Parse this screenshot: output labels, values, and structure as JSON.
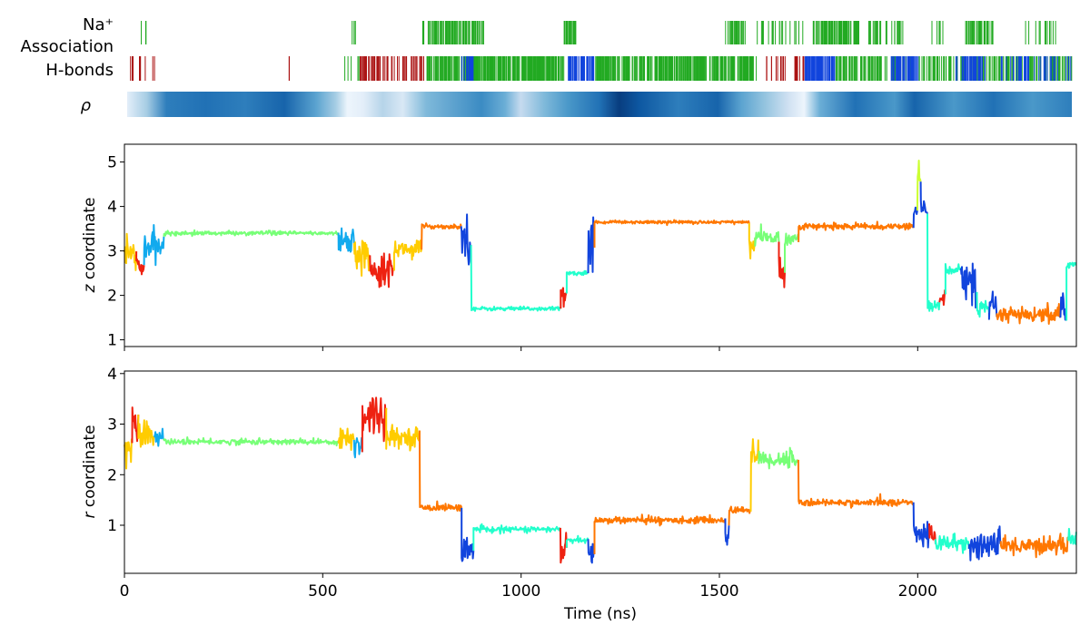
{
  "figure": {
    "track_labels": {
      "na_line1": "Na⁺",
      "na_line2": "Association",
      "hbonds": "H-bonds",
      "rho": "ρ"
    },
    "colors": {
      "na": "#22aa22",
      "hb_red": "#aa1111",
      "hb_green": "#22aa22",
      "hb_blue": "#1144dd",
      "state_green": "#77ff77",
      "state_cyan": "#11aaee",
      "state_yellow": "#ffcc00",
      "state_red": "#ee2211",
      "state_orange": "#ff7700",
      "state_blue": "#1144dd",
      "state_aqua": "#22ffcc",
      "state_lime": "#ccff33"
    }
  },
  "chart_data": [
    {
      "type": "event-raster",
      "name": "Na+ Association",
      "x_range": [
        0,
        2400
      ],
      "intervals": [
        {
          "start": 25,
          "end": 60,
          "color": "na",
          "density": 0.1
        },
        {
          "start": 570,
          "end": 580,
          "color": "na",
          "density": 0.4
        },
        {
          "start": 750,
          "end": 910,
          "color": "na",
          "density": 0.6
        },
        {
          "start": 1110,
          "end": 1140,
          "color": "na",
          "density": 0.8
        },
        {
          "start": 1520,
          "end": 1570,
          "color": "na",
          "density": 0.6
        },
        {
          "start": 1600,
          "end": 1720,
          "color": "na",
          "density": 0.2
        },
        {
          "start": 1740,
          "end": 1860,
          "color": "na",
          "density": 0.8
        },
        {
          "start": 1880,
          "end": 1980,
          "color": "na",
          "density": 0.3
        },
        {
          "start": 2040,
          "end": 2080,
          "color": "na",
          "density": 0.2
        },
        {
          "start": 2130,
          "end": 2200,
          "color": "na",
          "density": 0.6
        },
        {
          "start": 2280,
          "end": 2360,
          "color": "na",
          "density": 0.2
        }
      ]
    },
    {
      "type": "event-raster",
      "name": "H-bonds",
      "x_range": [
        0,
        2400
      ],
      "intervals": [
        {
          "start": 5,
          "end": 70,
          "color": "hb_red",
          "density": 0.15
        },
        {
          "start": 410,
          "end": 412,
          "color": "hb_red",
          "density": 1
        },
        {
          "start": 550,
          "end": 600,
          "color": "hb_green",
          "density": 0.1
        },
        {
          "start": 590,
          "end": 760,
          "color": "hb_red",
          "density": 0.4
        },
        {
          "start": 760,
          "end": 1110,
          "color": "hb_green",
          "density": 0.85
        },
        {
          "start": 850,
          "end": 880,
          "color": "hb_blue",
          "density": 0.8
        },
        {
          "start": 1120,
          "end": 1190,
          "color": "hb_blue",
          "density": 0.95
        },
        {
          "start": 1190,
          "end": 1600,
          "color": "hb_green",
          "density": 0.8
        },
        {
          "start": 1620,
          "end": 1680,
          "color": "hb_red",
          "density": 0.2
        },
        {
          "start": 1690,
          "end": 1720,
          "color": "hb_red",
          "density": 0.4
        },
        {
          "start": 1720,
          "end": 1800,
          "color": "hb_blue",
          "density": 0.9
        },
        {
          "start": 1800,
          "end": 2400,
          "color": "hb_green",
          "density": 0.45
        },
        {
          "start": 1940,
          "end": 2010,
          "color": "hb_blue",
          "density": 0.7
        },
        {
          "start": 2100,
          "end": 2180,
          "color": "hb_blue",
          "density": 0.5
        },
        {
          "start": 2220,
          "end": 2400,
          "color": "hb_blue",
          "density": 0.25
        }
      ]
    },
    {
      "type": "heatmap",
      "name": "rho",
      "x_range": [
        0,
        2400
      ],
      "colormap": "Blues",
      "profile": [
        {
          "x": 0,
          "v": 0.1
        },
        {
          "x": 50,
          "v": 0.35
        },
        {
          "x": 100,
          "v": 0.7
        },
        {
          "x": 200,
          "v": 0.75
        },
        {
          "x": 300,
          "v": 0.7
        },
        {
          "x": 400,
          "v": 0.8
        },
        {
          "x": 480,
          "v": 0.55
        },
        {
          "x": 530,
          "v": 0.35
        },
        {
          "x": 560,
          "v": 0.05
        },
        {
          "x": 600,
          "v": 0.1
        },
        {
          "x": 650,
          "v": 0.3
        },
        {
          "x": 700,
          "v": 0.15
        },
        {
          "x": 760,
          "v": 0.45
        },
        {
          "x": 900,
          "v": 0.65
        },
        {
          "x": 960,
          "v": 0.5
        },
        {
          "x": 1000,
          "v": 0.25
        },
        {
          "x": 1060,
          "v": 0.45
        },
        {
          "x": 1120,
          "v": 0.6
        },
        {
          "x": 1200,
          "v": 0.75
        },
        {
          "x": 1250,
          "v": 0.95
        },
        {
          "x": 1300,
          "v": 0.85
        },
        {
          "x": 1400,
          "v": 0.7
        },
        {
          "x": 1500,
          "v": 0.8
        },
        {
          "x": 1560,
          "v": 0.55
        },
        {
          "x": 1620,
          "v": 0.4
        },
        {
          "x": 1680,
          "v": 0.2
        },
        {
          "x": 1720,
          "v": 0.05
        },
        {
          "x": 1760,
          "v": 0.5
        },
        {
          "x": 1850,
          "v": 0.75
        },
        {
          "x": 1950,
          "v": 0.6
        },
        {
          "x": 2000,
          "v": 0.8
        },
        {
          "x": 2100,
          "v": 0.6
        },
        {
          "x": 2200,
          "v": 0.75
        },
        {
          "x": 2300,
          "v": 0.6
        },
        {
          "x": 2400,
          "v": 0.7
        }
      ]
    },
    {
      "type": "line",
      "name": "z",
      "ylabel_var": "z",
      "ylabel_rest": " coordinate",
      "xlim": [
        0,
        2400
      ],
      "ylim": [
        0.85,
        5.4
      ],
      "yticks": [
        1,
        2,
        3,
        4,
        5
      ],
      "xticks": [
        0,
        500,
        1000,
        1500,
        2000
      ],
      "show_xticklabels": false,
      "segments": [
        {
          "start": 0,
          "end": 30,
          "mean": 2.95,
          "noise": 0.3,
          "color": "state_yellow"
        },
        {
          "start": 30,
          "end": 50,
          "mean": 2.6,
          "noise": 0.3,
          "color": "state_red"
        },
        {
          "start": 50,
          "end": 100,
          "mean": 3.1,
          "noise": 0.35,
          "color": "state_cyan"
        },
        {
          "start": 100,
          "end": 540,
          "mean": 3.4,
          "noise": 0.05,
          "color": "state_green"
        },
        {
          "start": 540,
          "end": 580,
          "mean": 3.2,
          "noise": 0.35,
          "color": "state_cyan"
        },
        {
          "start": 580,
          "end": 620,
          "mean": 2.9,
          "noise": 0.35,
          "color": "state_yellow"
        },
        {
          "start": 620,
          "end": 680,
          "mean": 2.6,
          "noise": 0.35,
          "color": "state_red"
        },
        {
          "start": 680,
          "end": 750,
          "mean": 3.05,
          "noise": 0.2,
          "color": "state_yellow"
        },
        {
          "start": 750,
          "end": 850,
          "mean": 3.55,
          "noise": 0.06,
          "color": "state_orange"
        },
        {
          "start": 850,
          "end": 875,
          "mean": 3.3,
          "noise": 0.6,
          "color": "state_blue"
        },
        {
          "start": 875,
          "end": 1100,
          "mean": 1.7,
          "noise": 0.05,
          "color": "state_aqua"
        },
        {
          "start": 1100,
          "end": 1115,
          "mean": 2.0,
          "noise": 0.3,
          "color": "state_red"
        },
        {
          "start": 1115,
          "end": 1170,
          "mean": 2.5,
          "noise": 0.05,
          "color": "state_aqua"
        },
        {
          "start": 1170,
          "end": 1185,
          "mean": 3.2,
          "noise": 0.5,
          "color": "state_blue"
        },
        {
          "start": 1185,
          "end": 1575,
          "mean": 3.65,
          "noise": 0.04,
          "color": "state_orange"
        },
        {
          "start": 1575,
          "end": 1590,
          "mean": 3.1,
          "noise": 0.3,
          "color": "state_yellow"
        },
        {
          "start": 1590,
          "end": 1650,
          "mean": 3.3,
          "noise": 0.2,
          "color": "state_green"
        },
        {
          "start": 1650,
          "end": 1665,
          "mean": 2.5,
          "noise": 0.3,
          "color": "state_red"
        },
        {
          "start": 1665,
          "end": 1700,
          "mean": 3.3,
          "noise": 0.2,
          "color": "state_green"
        },
        {
          "start": 1700,
          "end": 1990,
          "mean": 3.55,
          "noise": 0.07,
          "color": "state_orange"
        },
        {
          "start": 1990,
          "end": 2000,
          "mean": 3.9,
          "noise": 0.2,
          "color": "state_blue"
        },
        {
          "start": 2000,
          "end": 2008,
          "mean": 4.8,
          "noise": 0.4,
          "color": "state_lime"
        },
        {
          "start": 2008,
          "end": 2025,
          "mean": 4.0,
          "noise": 0.25,
          "color": "state_blue"
        },
        {
          "start": 2025,
          "end": 2055,
          "mean": 1.75,
          "noise": 0.15,
          "color": "state_aqua"
        },
        {
          "start": 2055,
          "end": 2070,
          "mean": 1.95,
          "noise": 0.2,
          "color": "state_red"
        },
        {
          "start": 2070,
          "end": 2110,
          "mean": 2.6,
          "noise": 0.15,
          "color": "state_aqua"
        },
        {
          "start": 2110,
          "end": 2150,
          "mean": 2.3,
          "noise": 0.5,
          "color": "state_blue"
        },
        {
          "start": 2150,
          "end": 2180,
          "mean": 1.7,
          "noise": 0.2,
          "color": "state_aqua"
        },
        {
          "start": 2180,
          "end": 2200,
          "mean": 1.7,
          "noise": 0.3,
          "color": "state_blue"
        },
        {
          "start": 2200,
          "end": 2360,
          "mean": 1.55,
          "noise": 0.2,
          "color": "state_orange"
        },
        {
          "start": 2360,
          "end": 2375,
          "mean": 1.6,
          "noise": 0.5,
          "color": "state_blue"
        },
        {
          "start": 2375,
          "end": 2400,
          "mean": 2.7,
          "noise": 0.1,
          "color": "state_aqua"
        }
      ]
    },
    {
      "type": "line",
      "name": "r",
      "ylabel_var": "r",
      "ylabel_rest": " coordinate",
      "xlabel": "Time (ns)",
      "xlim": [
        0,
        2400
      ],
      "ylim": [
        0.05,
        4.05
      ],
      "yticks": [
        1,
        2,
        3,
        4
      ],
      "xticks": [
        0,
        500,
        1000,
        1500,
        2000
      ],
      "show_xticklabels": true,
      "segments": [
        {
          "start": 0,
          "end": 20,
          "mean": 2.5,
          "noise": 0.3,
          "color": "state_yellow"
        },
        {
          "start": 20,
          "end": 35,
          "mean": 3.0,
          "noise": 0.4,
          "color": "state_red"
        },
        {
          "start": 35,
          "end": 75,
          "mean": 2.8,
          "noise": 0.3,
          "color": "state_yellow"
        },
        {
          "start": 75,
          "end": 100,
          "mean": 2.75,
          "noise": 0.2,
          "color": "state_cyan"
        },
        {
          "start": 100,
          "end": 540,
          "mean": 2.65,
          "noise": 0.06,
          "color": "state_green"
        },
        {
          "start": 540,
          "end": 580,
          "mean": 2.7,
          "noise": 0.3,
          "color": "state_yellow"
        },
        {
          "start": 580,
          "end": 600,
          "mean": 2.6,
          "noise": 0.3,
          "color": "state_cyan"
        },
        {
          "start": 600,
          "end": 660,
          "mean": 3.2,
          "noise": 0.5,
          "color": "state_red"
        },
        {
          "start": 660,
          "end": 745,
          "mean": 2.75,
          "noise": 0.2,
          "color": "state_yellow"
        },
        {
          "start": 745,
          "end": 850,
          "mean": 1.35,
          "noise": 0.07,
          "color": "state_orange"
        },
        {
          "start": 850,
          "end": 880,
          "mean": 0.5,
          "noise": 0.3,
          "color": "state_blue"
        },
        {
          "start": 880,
          "end": 1100,
          "mean": 0.92,
          "noise": 0.06,
          "color": "state_aqua"
        },
        {
          "start": 1100,
          "end": 1115,
          "mean": 0.5,
          "noise": 0.3,
          "color": "state_red"
        },
        {
          "start": 1115,
          "end": 1170,
          "mean": 0.7,
          "noise": 0.06,
          "color": "state_aqua"
        },
        {
          "start": 1170,
          "end": 1185,
          "mean": 0.4,
          "noise": 0.3,
          "color": "state_blue"
        },
        {
          "start": 1185,
          "end": 1515,
          "mean": 1.1,
          "noise": 0.07,
          "color": "state_orange"
        },
        {
          "start": 1515,
          "end": 1525,
          "mean": 0.8,
          "noise": 0.3,
          "color": "state_blue"
        },
        {
          "start": 1525,
          "end": 1580,
          "mean": 1.3,
          "noise": 0.07,
          "color": "state_orange"
        },
        {
          "start": 1580,
          "end": 1600,
          "mean": 2.4,
          "noise": 0.3,
          "color": "state_yellow"
        },
        {
          "start": 1600,
          "end": 1700,
          "mean": 2.3,
          "noise": 0.2,
          "color": "state_green"
        },
        {
          "start": 1700,
          "end": 1990,
          "mean": 1.45,
          "noise": 0.07,
          "color": "state_orange"
        },
        {
          "start": 1990,
          "end": 2030,
          "mean": 0.8,
          "noise": 0.3,
          "color": "state_blue"
        },
        {
          "start": 2030,
          "end": 2045,
          "mean": 0.85,
          "noise": 0.25,
          "color": "state_red"
        },
        {
          "start": 2045,
          "end": 2130,
          "mean": 0.65,
          "noise": 0.2,
          "color": "state_aqua"
        },
        {
          "start": 2130,
          "end": 2210,
          "mean": 0.6,
          "noise": 0.3,
          "color": "state_blue"
        },
        {
          "start": 2210,
          "end": 2380,
          "mean": 0.6,
          "noise": 0.2,
          "color": "state_orange"
        },
        {
          "start": 2380,
          "end": 2400,
          "mean": 0.75,
          "noise": 0.15,
          "color": "state_aqua"
        }
      ]
    }
  ]
}
